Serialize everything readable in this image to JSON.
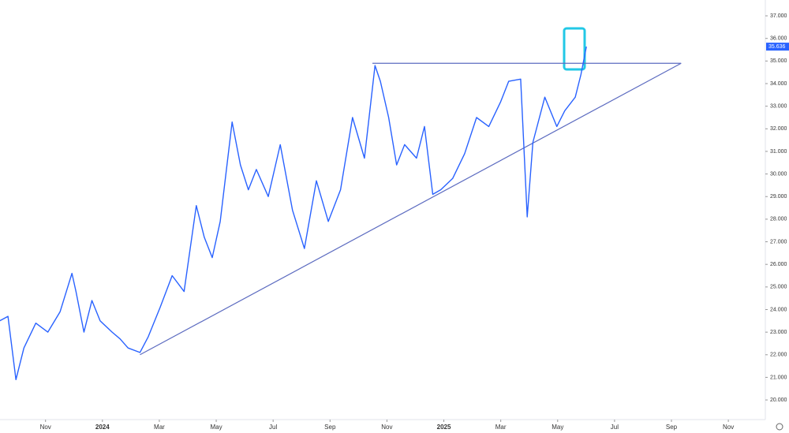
{
  "chart_data": {
    "type": "line",
    "color": "#2962ff",
    "x": [
      -0.61,
      -0.32,
      -0.04,
      0.24,
      0.66,
      1.08,
      1.51,
      1.93,
      2.07,
      2.35,
      2.63,
      2.92,
      3.34,
      3.62,
      3.9,
      4.32,
      4.61,
      5.03,
      5.45,
      5.87,
      6.3,
      6.58,
      6.86,
      7.14,
      7.56,
      7.85,
      8.13,
      8.41,
      8.83,
      9.25,
      9.68,
      10.1,
      10.52,
      10.94,
      11.37,
      11.79,
      12.21,
      12.58,
      12.77,
      13.06,
      13.34,
      13.62,
      14.04,
      14.32,
      14.61,
      14.89,
      15.31,
      15.73,
      16.15,
      16.58,
      17.0,
      17.28,
      17.7,
      17.93,
      18.13,
      18.55,
      18.97,
      19.25,
      19.62,
      19.82,
      20.01
    ],
    "values": [
      23.5,
      23.7,
      20.9,
      22.3,
      23.4,
      23.0,
      23.9,
      25.6,
      24.8,
      23.0,
      24.4,
      23.5,
      23.0,
      22.7,
      22.3,
      22.1,
      22.8,
      24.1,
      25.5,
      24.8,
      28.6,
      27.2,
      26.3,
      27.9,
      32.3,
      30.4,
      29.3,
      30.2,
      29.0,
      31.3,
      28.4,
      26.7,
      29.7,
      27.9,
      29.3,
      32.5,
      30.7,
      34.8,
      34.1,
      32.5,
      30.4,
      31.3,
      30.7,
      32.1,
      29.1,
      29.3,
      29.8,
      30.9,
      32.5,
      32.1,
      33.2,
      34.1,
      34.2,
      28.1,
      31.4,
      33.4,
      32.1,
      32.8,
      33.4,
      34.4,
      35.636
    ],
    "last_price_label": "35.636",
    "trendlines": [
      {
        "x": [
          12.49,
          23.34
        ],
        "y": [
          34.9,
          34.9
        ],
        "color": "#5c6bc0"
      },
      {
        "x": [
          4.32,
          23.34
        ],
        "y": [
          22.0,
          34.9
        ],
        "color": "#5c6bc0"
      }
    ],
    "xlim": [
      -0.6,
      26.3
    ],
    "xticks": [
      {
        "value": 1,
        "label": "Nov"
      },
      {
        "value": 3,
        "label": "2024"
      },
      {
        "value": 5,
        "label": "Mar"
      },
      {
        "value": 7,
        "label": "May"
      },
      {
        "value": 9,
        "label": "Jul"
      },
      {
        "value": 11,
        "label": "Sep"
      },
      {
        "value": 13,
        "label": "Nov"
      },
      {
        "value": 15,
        "label": "2025"
      },
      {
        "value": 17,
        "label": "Mar"
      },
      {
        "value": 19,
        "label": "May"
      },
      {
        "value": 21,
        "label": "Jul"
      },
      {
        "value": 23,
        "label": "Sep"
      },
      {
        "value": 25,
        "label": "Nov"
      }
    ],
    "ylim": [
      19.2,
      37.7
    ],
    "yticks": [
      {
        "value": 20,
        "label": "20.000"
      },
      {
        "value": 21,
        "label": "21.000"
      },
      {
        "value": 22,
        "label": "22.000"
      },
      {
        "value": 23,
        "label": "23.000"
      },
      {
        "value": 24,
        "label": "24.000"
      },
      {
        "value": 25,
        "label": "25.000"
      },
      {
        "value": 26,
        "label": "26.000"
      },
      {
        "value": 27,
        "label": "27.000"
      },
      {
        "value": 28,
        "label": "28.000"
      },
      {
        "value": 29,
        "label": "29.000"
      },
      {
        "value": 30,
        "label": "30.000"
      },
      {
        "value": 31,
        "label": "31.000"
      },
      {
        "value": 32,
        "label": "32.000"
      },
      {
        "value": 33,
        "label": "33.000"
      },
      {
        "value": 34,
        "label": "34.000"
      },
      {
        "value": 35,
        "label": "35.000"
      },
      {
        "value": 36,
        "label": "36.000"
      },
      {
        "value": 37,
        "label": "37.000"
      }
    ]
  }
}
